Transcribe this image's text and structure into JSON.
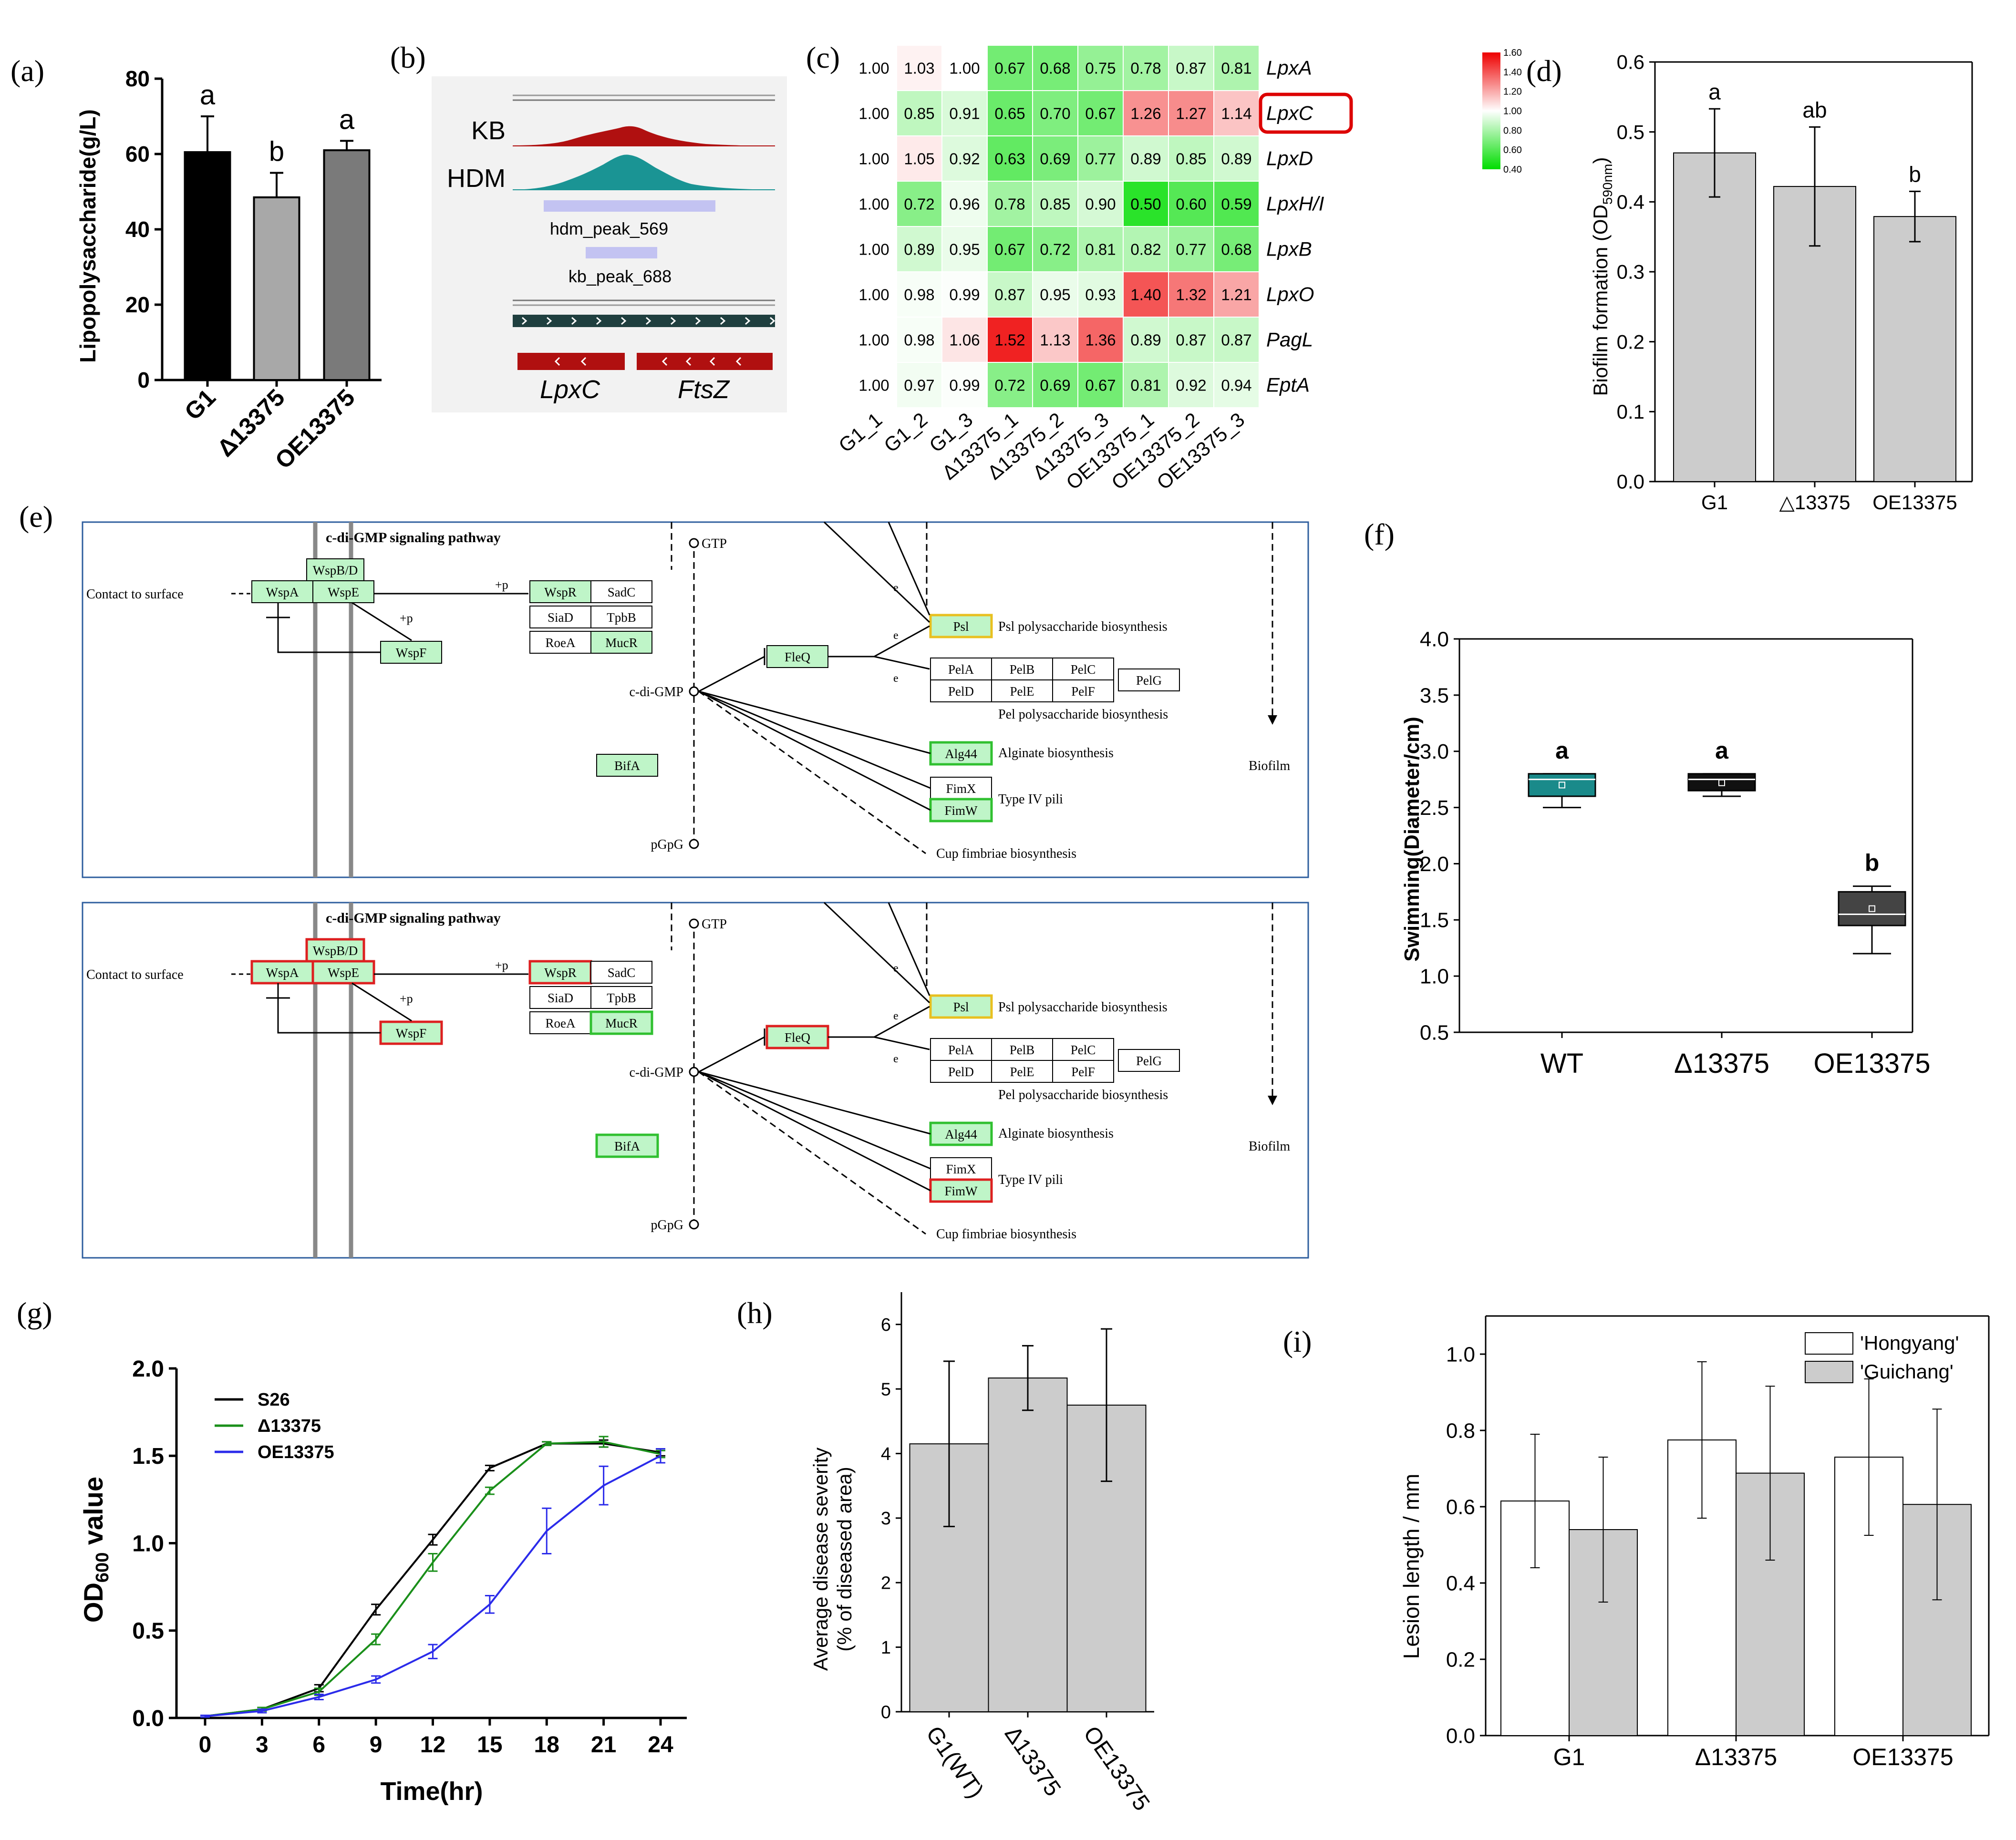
{
  "panels": {
    "a": {
      "letter": "(a)",
      "chart_data": {
        "type": "bar",
        "categories": [
          "G1",
          "Δ13375",
          "OE13375"
        ],
        "values": [
          60.5,
          48.5,
          61
        ],
        "errors": [
          9.5,
          6.5,
          2.5
        ],
        "letters": [
          "a",
          "b",
          "a"
        ],
        "colors": [
          "#000000",
          "#a8a8a8",
          "#7a7a7a"
        ],
        "ylabel": "Lipopolysaccharide(g/L)",
        "ylim": [
          0,
          80
        ],
        "yticks": [
          0,
          20,
          40,
          60,
          80
        ]
      }
    },
    "b": {
      "letter": "(b)",
      "tracks": [
        "KB",
        "HDM"
      ],
      "peaks": [
        "hdm_peak_569",
        "kb_peak_688"
      ],
      "genes": [
        "LpxC",
        "FtsZ"
      ]
    },
    "c": {
      "letter": "(c)",
      "chart_data": {
        "type": "heatmap",
        "columns": [
          "G1_1",
          "G1_2",
          "G1_3",
          "Δ13375_1",
          "Δ13375_2",
          "Δ13375_3",
          "OE13375_1",
          "OE13375_2",
          "OE13375_3"
        ],
        "rows": [
          "LpxA",
          "LpxC",
          "LpxD",
          "LpxH/I",
          "LpxB",
          "LpxO",
          "PagL",
          "EptA"
        ],
        "highlight_row": "LpxC",
        "values": [
          [
            "1.00",
            "1.03",
            "1.00",
            "0.67",
            "0.68",
            "0.75",
            "0.78",
            "0.87",
            "0.81"
          ],
          [
            "1.00",
            "0.85",
            "0.91",
            "0.65",
            "0.70",
            "0.67",
            "1.26",
            "1.27",
            "1.14"
          ],
          [
            "1.00",
            "1.05",
            "0.92",
            "0.63",
            "0.69",
            "0.77",
            "0.89",
            "0.85",
            "0.89"
          ],
          [
            "1.00",
            "0.72",
            "0.96",
            "0.78",
            "0.85",
            "0.90",
            "0.50",
            "0.60",
            "0.59"
          ],
          [
            "1.00",
            "0.89",
            "0.95",
            "0.67",
            "0.72",
            "0.81",
            "0.82",
            "0.77",
            "0.68"
          ],
          [
            "1.00",
            "0.98",
            "0.99",
            "0.87",
            "0.95",
            "0.93",
            "1.40",
            "1.32",
            "1.21"
          ],
          [
            "1.00",
            "0.98",
            "1.06",
            "1.52",
            "1.13",
            "1.36",
            "0.89",
            "0.87",
            "0.87"
          ],
          [
            "1.00",
            "0.97",
            "0.99",
            "0.72",
            "0.69",
            "0.67",
            "0.81",
            "0.92",
            "0.94"
          ]
        ],
        "colorbar_ticks": [
          "1.60",
          "1.40",
          "1.20",
          "1.00",
          "0.80",
          "0.60",
          "0.40"
        ],
        "range": [
          0.4,
          1.6
        ],
        "colors": {
          "low": "#00dd00",
          "mid": "#ffffff",
          "high": "#ee0000",
          "highlight": "#dd0000"
        }
      }
    },
    "d": {
      "letter": "(d)",
      "chart_data": {
        "type": "bar",
        "categories": [
          "G1",
          "△13375",
          "OE13375"
        ],
        "values": [
          0.47,
          0.422,
          0.379
        ],
        "errors": [
          0.063,
          0.085,
          0.036
        ],
        "letters": [
          "a",
          "ab",
          "b"
        ],
        "ylabel": "Biofilm formation (OD",
        "ylabel_sub": "590nm",
        "ylabel_end": ")",
        "ylim": [
          0,
          0.6
        ],
        "yticks": [
          "0.0",
          "0.1",
          "0.2",
          "0.3",
          "0.4",
          "0.5",
          "0.6"
        ],
        "color": "#cccccc"
      }
    },
    "e": {
      "letter": "(e)",
      "title": "c-di-GMP signaling pathway",
      "contact": "Contact to surface",
      "plus_p": "+p",
      "nodes": {
        "wspbd": "WspB/D",
        "wspa": "WspA",
        "wspe": "WspE",
        "wspf": "WspF",
        "wspr": "WspR",
        "sadc": "SadC",
        "siad": "SiaD",
        "tpbb": "TpbB",
        "roea": "RoeA",
        "mucr": "MucR",
        "fleq": "FleQ",
        "bifa": "BifA",
        "psl": "Psl",
        "pela": "PelA",
        "pelb": "PelB",
        "pelc": "PelC",
        "peld": "PelD",
        "pele": "PelE",
        "pelf": "PelF",
        "pelg": "PelG",
        "alg44": "Alg44",
        "fimx": "FimX",
        "fimw": "FimW"
      },
      "labels": {
        "gtp": "GTP",
        "cdigmp": "c-di-GMP",
        "pgpg": "pGpG",
        "psl_bio": "Psl polysaccharide biosynthesis",
        "pel_bio": "Pel polysaccharide biosynthesis",
        "alg_bio": "Alginate biosynthesis",
        "pili": "Type IV pili",
        "cup": "Cup fimbriae biosynthesis",
        "biofilm": "Biofilm",
        "e": "e"
      },
      "colors": {
        "fill": "#bff5c8",
        "frame": "#2e5e9e",
        "red": "#dd2020",
        "yellow": "#e8c020",
        "green": "#30c030"
      }
    },
    "f": {
      "letter": "(f)",
      "chart_data": {
        "type": "box",
        "categories": [
          "WT",
          "Δ13375",
          "OE13375"
        ],
        "boxes": [
          {
            "min": 2.5,
            "q1": 2.6,
            "median": 2.75,
            "q3": 2.8,
            "max": 2.8,
            "mean": 2.7,
            "color": "#1a8a8a"
          },
          {
            "min": 2.6,
            "q1": 2.65,
            "median": 2.75,
            "q3": 2.8,
            "max": 2.8,
            "mean": 2.72,
            "color": "#111111"
          },
          {
            "min": 1.2,
            "q1": 1.45,
            "median": 1.55,
            "q3": 1.75,
            "max": 1.8,
            "mean": 1.6,
            "color": "#444444"
          }
        ],
        "letters": [
          "a",
          "a",
          "b"
        ],
        "ylabel": "Swimming(Diameter/cm)",
        "ylim": [
          0.5,
          4.0
        ],
        "yticks": [
          "0.5",
          "1.0",
          "1.5",
          "2.0",
          "2.5",
          "3.0",
          "3.5",
          "4.0"
        ]
      }
    },
    "g": {
      "letter": "(g)",
      "chart_data": {
        "type": "line",
        "x": [
          0,
          3,
          6,
          9,
          12,
          15,
          18,
          21,
          24
        ],
        "xticks": [
          "0",
          "3",
          "6",
          "9",
          "12",
          "15",
          "18",
          "21",
          "24"
        ],
        "series": [
          {
            "name": "S26",
            "color": "#000000",
            "values": [
              0.01,
              0.05,
              0.17,
              0.62,
              1.02,
              1.43,
              1.57,
              1.57,
              1.52
            ],
            "errors": [
              0.005,
              0.01,
              0.02,
              0.03,
              0.03,
              0.015,
              0.01,
              0.02,
              0.02
            ]
          },
          {
            "name": "Δ13375",
            "color": "#1a8f1a",
            "values": [
              0.01,
              0.05,
              0.15,
              0.45,
              0.89,
              1.3,
              1.57,
              1.58,
              1.51
            ],
            "errors": [
              0.005,
              0.01,
              0.02,
              0.03,
              0.05,
              0.02,
              0.01,
              0.03,
              0.02
            ]
          },
          {
            "name": "OE13375",
            "color": "#2b2bea",
            "values": [
              0.01,
              0.04,
              0.12,
              0.22,
              0.38,
              0.65,
              1.07,
              1.33,
              1.5
            ],
            "errors": [
              0.005,
              0.01,
              0.015,
              0.02,
              0.04,
              0.05,
              0.13,
              0.11,
              0.04
            ]
          }
        ],
        "xlabel": "Time(hr)",
        "ylabel": "OD",
        "ylabel_sub": "600",
        "ylabel_end": " value",
        "ylim": [
          0,
          2.0
        ],
        "yticks": [
          "0.0",
          "0.5",
          "1.0",
          "1.5",
          "2.0"
        ]
      }
    },
    "h": {
      "letter": "(h)",
      "chart_data": {
        "type": "bar",
        "categories": [
          "G1(WT)",
          "Δ13375",
          "OE13375"
        ],
        "values": [
          4.15,
          5.17,
          4.75
        ],
        "errors": [
          1.28,
          0.5,
          1.18
        ],
        "ylabel1": "Average disease severity",
        "ylabel2": "(% of diseased area)",
        "ylim": [
          0,
          6.5
        ],
        "yticks": [
          "0",
          "1",
          "2",
          "3",
          "4",
          "5",
          "6"
        ],
        "color": "#cccccc"
      }
    },
    "i": {
      "letter": "(i)",
      "chart_data": {
        "type": "bar",
        "categories": [
          "G1",
          "Δ13375",
          "OE13375"
        ],
        "series": [
          {
            "name": "'Hongyang'",
            "color": "#ffffff",
            "values": [
              0.615,
              0.775,
              0.73
            ],
            "errors": [
              0.175,
              0.205,
              0.205
            ]
          },
          {
            "name": "'Guichang'",
            "color": "#cccccc",
            "values": [
              0.54,
              0.688,
              0.606
            ],
            "errors": [
              0.19,
              0.228,
              0.25
            ]
          }
        ],
        "ylabel": "Lesion length / mm",
        "ylim": [
          0,
          1.1
        ],
        "yticks": [
          "0.0",
          "0.2",
          "0.4",
          "0.6",
          "0.8",
          "1.0"
        ]
      }
    }
  }
}
